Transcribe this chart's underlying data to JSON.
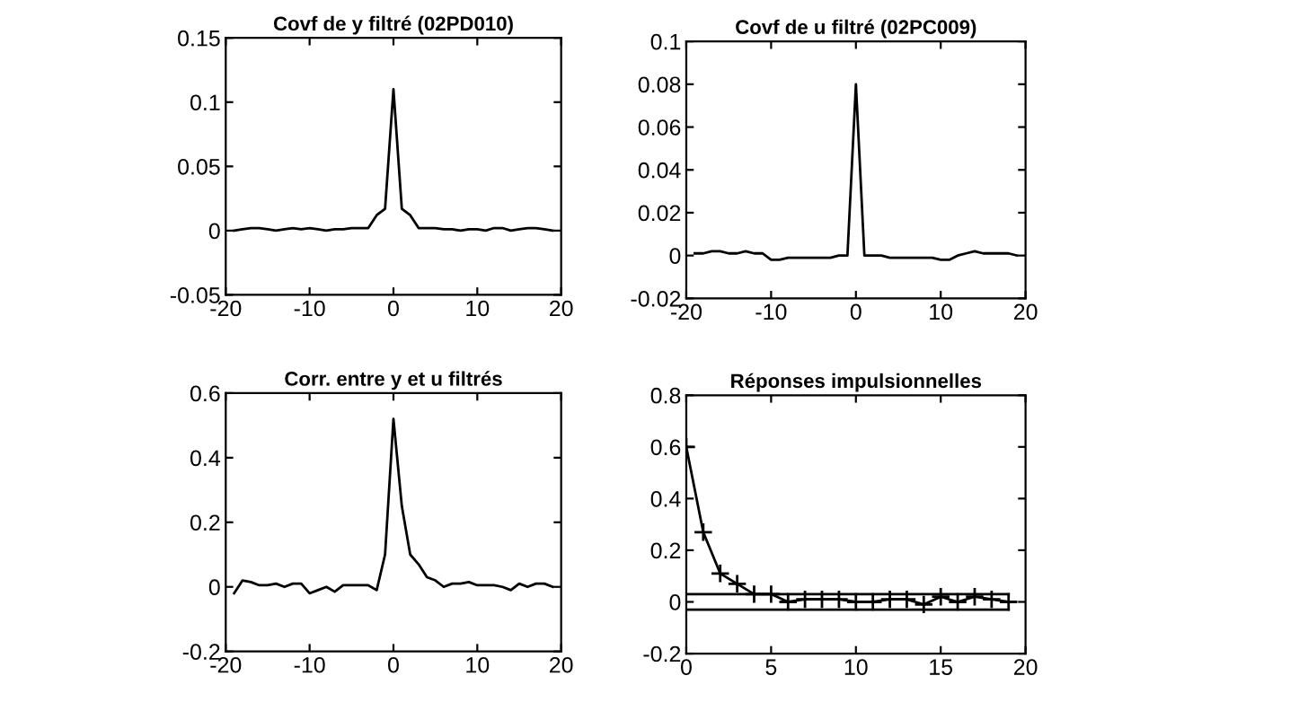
{
  "chart_data": [
    {
      "type": "line",
      "title": "Covf de y filtré (02PD010)",
      "x": [
        -19,
        -18,
        -17,
        -16,
        -15,
        -14,
        -13,
        -12,
        -11,
        -10,
        -9,
        -8,
        -7,
        -6,
        -5,
        -4,
        -3,
        -2,
        -1,
        0,
        1,
        2,
        3,
        4,
        5,
        6,
        7,
        8,
        9,
        10,
        11,
        12,
        13,
        14,
        15,
        16,
        17,
        18,
        19
      ],
      "series": [
        {
          "color": "#000000",
          "values": [
            0.0,
            0.001,
            0.002,
            0.002,
            0.001,
            0.0,
            0.001,
            0.002,
            0.001,
            0.002,
            0.001,
            0.0,
            0.001,
            0.001,
            0.002,
            0.002,
            0.002,
            0.012,
            0.017,
            0.11,
            0.017,
            0.012,
            0.002,
            0.002,
            0.002,
            0.001,
            0.001,
            0.0,
            0.001,
            0.001,
            0.0,
            0.002,
            0.002,
            0.0,
            0.001,
            0.002,
            0.002,
            0.001,
            0.0
          ]
        }
      ],
      "xlim": [
        -20,
        20
      ],
      "ylim": [
        -0.05,
        0.15
      ],
      "xticks": [
        -20,
        -10,
        0,
        10,
        20
      ],
      "yticks": [
        -0.05,
        0,
        0.05,
        0.1,
        0.15
      ],
      "grid": false,
      "marker": "none",
      "line_style": "solid"
    },
    {
      "type": "line",
      "title": "Covf de u filtré (02PC009)",
      "x": [
        -19,
        -18,
        -17,
        -16,
        -15,
        -14,
        -13,
        -12,
        -11,
        -10,
        -9,
        -8,
        -7,
        -6,
        -5,
        -4,
        -3,
        -2,
        -1,
        0,
        1,
        2,
        3,
        4,
        5,
        6,
        7,
        8,
        9,
        10,
        11,
        12,
        13,
        14,
        15,
        16,
        17,
        18,
        19
      ],
      "series": [
        {
          "color": "#000000",
          "values": [
            0.001,
            0.001,
            0.002,
            0.002,
            0.001,
            0.001,
            0.002,
            0.001,
            0.001,
            -0.002,
            -0.002,
            -0.001,
            -0.001,
            -0.001,
            -0.001,
            -0.001,
            -0.001,
            0.0,
            0.0,
            0.08,
            0.0,
            0.0,
            0.0,
            -0.001,
            -0.001,
            -0.001,
            -0.001,
            -0.001,
            -0.001,
            -0.002,
            -0.002,
            0.0,
            0.001,
            0.002,
            0.001,
            0.001,
            0.001,
            0.001,
            0.0
          ]
        }
      ],
      "xlim": [
        -20,
        20
      ],
      "ylim": [
        -0.02,
        0.1
      ],
      "xticks": [
        -20,
        -10,
        0,
        10,
        20
      ],
      "yticks": [
        -0.02,
        0,
        0.02,
        0.04,
        0.06,
        0.08,
        0.1
      ],
      "grid": false,
      "marker": "none",
      "line_style": "solid"
    },
    {
      "type": "line",
      "title": "Corr. entre y et u filtrés",
      "x": [
        -19,
        -18,
        -17,
        -16,
        -15,
        -14,
        -13,
        -12,
        -11,
        -10,
        -9,
        -8,
        -7,
        -6,
        -5,
        -4,
        -3,
        -2,
        -1,
        0,
        1,
        2,
        3,
        4,
        5,
        6,
        7,
        8,
        9,
        10,
        11,
        12,
        13,
        14,
        15,
        16,
        17,
        18,
        19
      ],
      "series": [
        {
          "color": "#000000",
          "values": [
            -0.02,
            0.02,
            0.015,
            0.005,
            0.005,
            0.01,
            0.0,
            0.01,
            0.01,
            -0.02,
            -0.01,
            0.0,
            -0.015,
            0.005,
            0.005,
            0.005,
            0.005,
            -0.01,
            0.1,
            0.52,
            0.25,
            0.1,
            0.07,
            0.03,
            0.02,
            0.0,
            0.01,
            0.01,
            0.015,
            0.005,
            0.005,
            0.005,
            0.0,
            -0.01,
            0.01,
            0.0,
            0.01,
            0.01,
            0.0
          ]
        }
      ],
      "xlim": [
        -20,
        20
      ],
      "ylim": [
        -0.2,
        0.6
      ],
      "xticks": [
        -20,
        -10,
        0,
        10,
        20
      ],
      "yticks": [
        -0.2,
        0,
        0.2,
        0.4,
        0.6
      ],
      "grid": false,
      "marker": "none",
      "line_style": "solid"
    },
    {
      "type": "line",
      "title": "Réponses impulsionnelles",
      "series": [
        {
          "color": "#000000",
          "marker": "cross",
          "x": [
            0,
            1,
            2,
            3,
            4,
            5,
            6,
            7,
            8,
            9,
            10,
            11,
            12,
            13,
            14,
            15,
            16,
            17,
            18,
            19
          ],
          "values": [
            0.6,
            0.27,
            0.11,
            0.07,
            0.03,
            0.03,
            0.0,
            0.01,
            0.01,
            0.01,
            0.0,
            0.0,
            0.01,
            0.01,
            -0.01,
            0.02,
            0.0,
            0.02,
            0.01,
            0.0
          ]
        },
        {
          "color": "#000000",
          "marker": "none",
          "x": [
            0,
            19
          ],
          "values": [
            0.03,
            0.03
          ]
        },
        {
          "color": "#000000",
          "marker": "none",
          "x": [
            0,
            19
          ],
          "values": [
            -0.03,
            -0.03
          ]
        }
      ],
      "xlim": [
        0,
        20
      ],
      "ylim": [
        -0.2,
        0.8
      ],
      "xticks": [
        0,
        5,
        10,
        15,
        20
      ],
      "yticks": [
        -0.2,
        0,
        0.2,
        0.4,
        0.6,
        0.8
      ],
      "grid": false,
      "line_style": "solid"
    }
  ]
}
